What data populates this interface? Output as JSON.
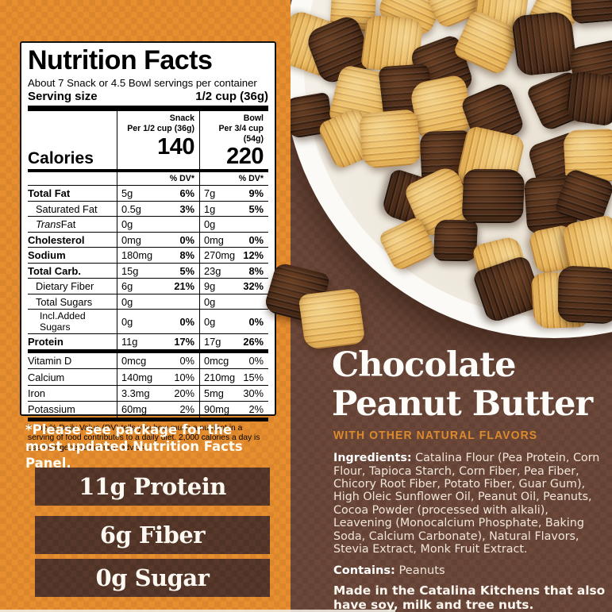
{
  "nutrition": {
    "title": "Nutrition Facts",
    "servings_line": "About 7 Snack or 4.5 Bowl servings per container",
    "serving_size_label": "Serving size",
    "serving_size_value": "1/2 cup (36g)",
    "calories_label": "Calories",
    "dv_header": "% DV*",
    "columns": {
      "snack": {
        "name": "Snack",
        "per": "Per 1/2 cup (36g)",
        "calories": "140"
      },
      "bowl": {
        "name": "Bowl",
        "per": "Per 3/4 cup (54g)",
        "calories": "220"
      }
    },
    "rows": [
      {
        "label": "Total Fat",
        "bold": true,
        "s": "5g",
        "sdv": "6%",
        "b": "7g",
        "bdv": "9%"
      },
      {
        "label": "Saturated Fat",
        "indent": 1,
        "s": "0.5g",
        "sdv": "3%",
        "b": "1g",
        "bdv": "5%"
      },
      {
        "label_italic": "Trans",
        "label_rest": " Fat",
        "indent": 1,
        "s": "0g",
        "sdv": "",
        "b": "0g",
        "bdv": ""
      },
      {
        "label": "Cholesterol",
        "bold": true,
        "s": "0mg",
        "sdv": "0%",
        "b": "0mg",
        "bdv": "0%"
      },
      {
        "label": "Sodium",
        "bold": true,
        "s": "180mg",
        "sdv": "8%",
        "b": "270mg",
        "bdv": "12%"
      },
      {
        "label": "Total Carb.",
        "bold": true,
        "s": "15g",
        "sdv": "5%",
        "b": "23g",
        "bdv": "8%"
      },
      {
        "label": "Dietary Fiber",
        "indent": 1,
        "s": "6g",
        "sdv": "21%",
        "b": "9g",
        "bdv": "32%"
      },
      {
        "label": "Total Sugars",
        "indent": 1,
        "s": "0g",
        "sdv": "",
        "b": "0g",
        "bdv": ""
      },
      {
        "label": "Incl.Added Sugars",
        "indent": 2,
        "s": "0g",
        "sdv": "0%",
        "b": "0g",
        "bdv": "0%"
      },
      {
        "label": "Protein",
        "bold": true,
        "s": "11g",
        "sdv": "17%",
        "b": "17g",
        "bdv": "26%"
      }
    ],
    "vitamin_rows": [
      {
        "label": "Vitamin D",
        "s": "0mcg",
        "sdv": "0%",
        "b": "0mcg",
        "bdv": "0%"
      },
      {
        "label": "Calcium",
        "s": "140mg",
        "sdv": "10%",
        "b": "210mg",
        "bdv": "15%"
      },
      {
        "label": "Iron",
        "s": "3.3mg",
        "sdv": "20%",
        "b": "5mg",
        "bdv": "30%"
      },
      {
        "label": "Potassium",
        "s": "60mg",
        "sdv": "2%",
        "b": "90mg",
        "bdv": "2%"
      }
    ],
    "footnote": "* The % Daily Value (DV) tells you how much a nutrient in a serving of food contributes to a daily diet. 2,000 calories a day is used for general nutrition advice."
  },
  "note": {
    "text": "*Please see package for the most updated Nutrition Facts Panel."
  },
  "badges": [
    {
      "label": "11g Protein"
    },
    {
      "label": "6g Fiber"
    },
    {
      "label": "0g Sugar"
    }
  ],
  "product": {
    "title_line1": "Chocolate",
    "title_line2": "Peanut Butter",
    "subtitle": "WITH OTHER NATURAL FLAVORS",
    "ingredients_label": "Ingredients:",
    "ingredients_text": "Catalina Flour (Pea Protein, Corn Flour, Tapioca Starch, Corn Fiber, Pea Fiber, Chicory Root Fiber, Potato Fiber, Guar Gum), High Oleic Sunflower Oil, Peanut Oil, Peanuts, Cocoa Powder (processed with alkali), Leavening (Monocalcium Phosphate, Baking Soda, Calcium Carbonate), Natural Flavors, Stevia Extract, Monk Fruit Extract.",
    "contains_label": "Contains:",
    "contains_value": "Peanuts",
    "allergen_note": "Made in the Catalina Kitchens that also have soy, milk and tree nuts."
  },
  "photo": {
    "description": "bowl of chocolate and peanut butter cereal squares in milk"
  },
  "colors": {
    "orange_bg": "#E78E2F",
    "brown_bg": "#6C483A",
    "badge_brown": "#57382A",
    "accent_orange": "#DD8A2C",
    "tan_cereal": "#E9B75C",
    "dark_cereal": "#4C2C19"
  }
}
